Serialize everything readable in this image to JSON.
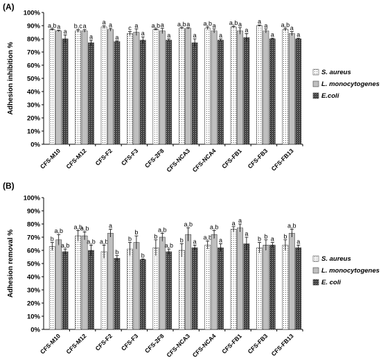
{
  "chart_data": [
    {
      "type": "bar",
      "panel_label": "(A)",
      "ylabel": "Adhesion inhibition %",
      "ylim": [
        0,
        100
      ],
      "ytick_labels": [
        "0%",
        "10%",
        "20%",
        "30%",
        "40%",
        "50%",
        "60%",
        "70%",
        "80%",
        "90%",
        "100%"
      ],
      "grid": false,
      "legend_position": "right",
      "categories": [
        "CFS-M10",
        "CFS-M12",
        "CFS-F2",
        "CFS-F3",
        "CFS-2F8",
        "CFS-NCA3",
        "CFS-NCA4",
        "CFS-FB1",
        "CFS-FB3",
        "CFS-FB13"
      ],
      "series": [
        {
          "name": "S. aureus",
          "fill": "dots",
          "values": [
            87,
            86,
            89,
            84,
            87,
            88,
            88,
            89,
            90,
            87
          ],
          "errors": [
            0.5,
            1,
            1,
            1.5,
            0.5,
            0.5,
            1,
            0.5,
            0.5,
            1
          ],
          "letters": [
            "a,b",
            "b,c",
            "a",
            "c",
            "a,b",
            "a,b",
            "a,b",
            "a,b",
            "a",
            "a,b"
          ]
        },
        {
          "name": "L. monocytogenes",
          "fill": "dense",
          "values": [
            86,
            86,
            87,
            85,
            86,
            88,
            86,
            86,
            86,
            84
          ],
          "errors": [
            0.5,
            1,
            1,
            2.5,
            2,
            0.5,
            1.5,
            2.5,
            1.5,
            1.5
          ],
          "letters": [
            "a",
            "a",
            "a",
            "a",
            "a",
            "a",
            "a",
            "a",
            "a",
            "a"
          ]
        },
        {
          "name": "E.coli",
          "fill": "dark",
          "values": [
            80,
            77,
            78,
            79,
            79,
            77,
            79,
            81,
            80,
            80
          ],
          "errors": [
            3,
            2,
            0.5,
            2.5,
            1,
            3,
            1,
            3,
            0.5,
            0.5
          ],
          "letters": [
            "a",
            "a",
            "a",
            "a",
            "a",
            "a",
            "a",
            "a",
            "a",
            "a"
          ]
        }
      ]
    },
    {
      "type": "bar",
      "panel_label": "(B)",
      "ylabel": "Adhesion removal %",
      "ylim": [
        0,
        100
      ],
      "ytick_labels": [
        "0%",
        "10%",
        "20%",
        "30%",
        "40%",
        "50%",
        "60%",
        "70%",
        "80%",
        "90%",
        "100%"
      ],
      "grid": false,
      "legend_position": "right",
      "categories": [
        "CFS-M10",
        "CFS-M12",
        "CFS-F2",
        "CFS-F3",
        "CFS-2F8",
        "CFS-NCA3",
        "CFS-NCA4",
        "CFS-FB1",
        "CFS-FB3",
        "CFS-FB13"
      ],
      "series": [
        {
          "name": "S. aureus",
          "fill": "dots",
          "values": [
            63,
            71,
            59,
            61,
            62,
            60,
            64,
            76,
            62,
            64
          ],
          "errors": [
            3,
            4,
            5,
            5,
            6,
            5,
            3,
            2,
            4,
            4
          ],
          "letters": [
            "b",
            "a,b",
            "a,b",
            "b",
            "b",
            "b",
            "a,b",
            "a",
            "b",
            "b"
          ]
        },
        {
          "name": "L. monocytogenes",
          "fill": "dense",
          "values": [
            68,
            71,
            73,
            66,
            70,
            72,
            72,
            77,
            64,
            73
          ],
          "errors": [
            4,
            3,
            3,
            5,
            3,
            5,
            3,
            3,
            4,
            3
          ],
          "letters": [
            "a,b",
            "a,b",
            "a",
            "b",
            "a,b",
            "a,b",
            "a,b",
            "a",
            "b",
            "a,b"
          ]
        },
        {
          "name": "E. coli",
          "fill": "dark",
          "values": [
            59,
            60,
            54,
            53,
            59,
            62,
            62,
            65,
            64,
            62
          ],
          "errors": [
            2,
            4,
            2,
            0.5,
            2,
            2,
            3,
            5,
            2,
            2
          ],
          "letters": [
            "a,b",
            "a,b",
            "b",
            "b",
            "a,b",
            "a",
            "a",
            "a",
            "a",
            "a"
          ]
        }
      ]
    }
  ]
}
